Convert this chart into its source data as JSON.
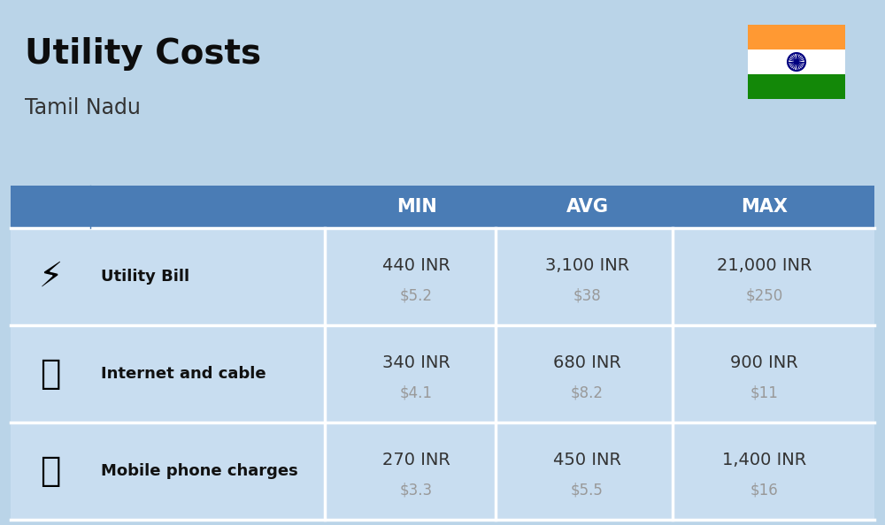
{
  "title": "Utility Costs",
  "subtitle": "Tamil Nadu",
  "background_color": "#bad4e8",
  "header_bg_color": "#4a7cb5",
  "header_text_color": "#ffffff",
  "row_bg_color": "#c8ddf0",
  "col_border_color": "#ffffff",
  "headers": [
    "MIN",
    "AVG",
    "MAX"
  ],
  "rows": [
    {
      "label": "Utility Bill",
      "min_inr": "440 INR",
      "min_usd": "$5.2",
      "avg_inr": "3,100 INR",
      "avg_usd": "$38",
      "max_inr": "21,000 INR",
      "max_usd": "$250"
    },
    {
      "label": "Internet and cable",
      "min_inr": "340 INR",
      "min_usd": "$4.1",
      "avg_inr": "680 INR",
      "avg_usd": "$8.2",
      "max_inr": "900 INR",
      "max_usd": "$11"
    },
    {
      "label": "Mobile phone charges",
      "min_inr": "270 INR",
      "min_usd": "$3.3",
      "avg_inr": "450 INR",
      "avg_usd": "$5.5",
      "max_inr": "1,400 INR",
      "max_usd": "$16"
    }
  ],
  "inr_color": "#333333",
  "usd_color": "#999999",
  "label_color": "#111111",
  "title_color": "#0d0d0d",
  "subtitle_color": "#333333"
}
